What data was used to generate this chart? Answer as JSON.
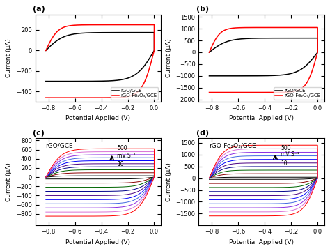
{
  "title_a": "(a)",
  "title_b": "(b)",
  "title_c": "(c)",
  "title_d": "(d)",
  "label_rgo": "rGO/GCE",
  "label_rgofeo": "rGO-Fe₂O₃/GCE",
  "xlabel": "Potential Applied (V)",
  "ylabel": "Current (μA)",
  "panel_a": {
    "xlim": [
      -0.9,
      0.05
    ],
    "ylim": [
      -500,
      350
    ],
    "yticks": [
      -400,
      -200,
      0,
      200
    ],
    "xticks": [
      -0.8,
      -0.6,
      -0.4,
      -0.2,
      0.0
    ]
  },
  "panel_b": {
    "xlim": [
      -0.9,
      0.05
    ],
    "ylim": [
      -2100,
      1600
    ],
    "yticks": [
      -2000,
      -1500,
      -1000,
      -500,
      0,
      500,
      1000,
      1500
    ],
    "xticks": [
      -0.8,
      -0.6,
      -0.4,
      -0.2,
      0.0
    ]
  },
  "panel_c": {
    "xlim": [
      -0.9,
      0.05
    ],
    "ylim": [
      -1050,
      850
    ],
    "yticks": [
      -800,
      -600,
      -400,
      -200,
      0,
      200,
      400,
      600,
      800
    ],
    "xticks": [
      -0.8,
      -0.6,
      -0.4,
      -0.2,
      0.0
    ],
    "label": "rGO/GCE"
  },
  "panel_d": {
    "xlim": [
      -0.9,
      0.05
    ],
    "ylim": [
      -2000,
      1700
    ],
    "yticks": [
      -1500,
      -1000,
      -500,
      0,
      500,
      1000,
      1500
    ],
    "xticks": [
      -0.8,
      -0.6,
      -0.4,
      -0.2,
      0.0
    ],
    "label": "rGO-Fe₂O₃/GCE"
  },
  "cv_colors_cd": [
    "#000000",
    "#8B0000",
    "#006400",
    "#00008B",
    "#4B0082",
    "#0000FF",
    "#4169E1",
    "#8A2BE2",
    "#DA70D6",
    "#FF0000"
  ],
  "n_scans": 10,
  "bg_color": "#ffffff"
}
